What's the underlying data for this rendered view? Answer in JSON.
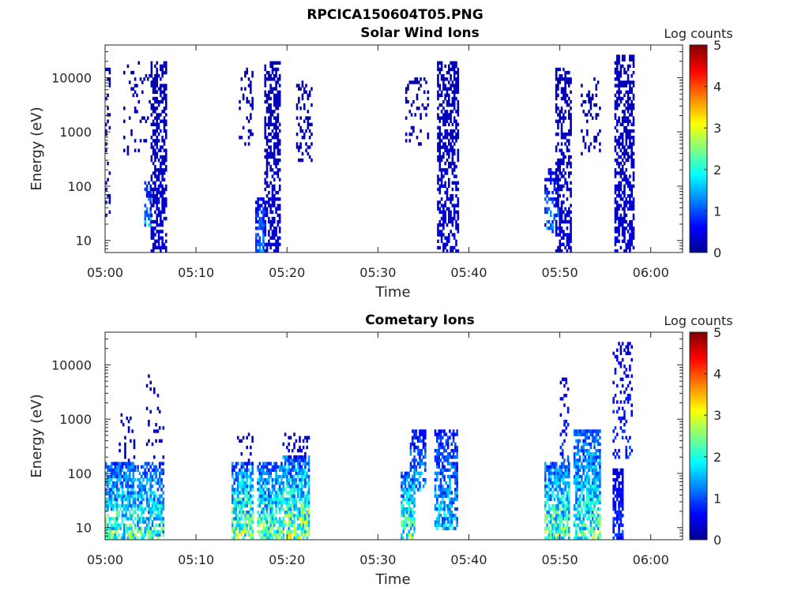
{
  "figure_title": "RPCICA150604T05.PNG",
  "colorscale": [
    "#00008f",
    "#0000ff",
    "#0080ff",
    "#00ffff",
    "#80ff80",
    "#ffff00",
    "#ff8000",
    "#ff0000",
    "#800000"
  ],
  "chart_data": [
    {
      "type": "heatmap",
      "title": "Solar Wind Ions",
      "xlabel": "Time",
      "ylabel": "Energy (eV)",
      "xlim": [
        0,
        63.5
      ],
      "ylim": [
        6,
        40000
      ],
      "xticks": [
        0,
        10,
        20,
        30,
        40,
        50,
        60
      ],
      "xtick_labels": [
        "05:00",
        "05:10",
        "05:20",
        "05:30",
        "05:40",
        "05:50",
        "06:00"
      ],
      "yticks": [
        10,
        100,
        1000,
        10000
      ],
      "ytick_labels": [
        "10",
        "100",
        "1000",
        "10000"
      ],
      "colorbar": {
        "label": "Log counts",
        "range": [
          0,
          5
        ],
        "ticks": [
          0,
          1,
          2,
          3,
          4,
          5
        ],
        "tick_labels": [
          "0",
          "1",
          "2",
          "3",
          "4",
          "5"
        ]
      },
      "bursts": [
        {
          "t0": 0.0,
          "t1": 0.5,
          "emin": 30,
          "emax": 15000,
          "peak": 0.4,
          "density": 0.3
        },
        {
          "t0": 2.0,
          "t1": 5.0,
          "emin": 400,
          "emax": 20000,
          "peak": 0.3,
          "density": 0.12
        },
        {
          "t0": 4.3,
          "t1": 5.0,
          "emin": 20,
          "emax": 120,
          "peak": 1.7,
          "density": 0.6
        },
        {
          "t0": 5.0,
          "t1": 6.7,
          "emin": 6,
          "emax": 20000,
          "peak": 0.5,
          "density": 0.55
        },
        {
          "t0": 14.7,
          "t1": 16.3,
          "emin": 600,
          "emax": 15000,
          "peak": 0.3,
          "density": 0.2
        },
        {
          "t0": 16.5,
          "t1": 17.6,
          "emin": 6,
          "emax": 60,
          "peak": 1.6,
          "density": 0.7
        },
        {
          "t0": 17.5,
          "t1": 19.3,
          "emin": 6,
          "emax": 18000,
          "peak": 0.5,
          "density": 0.55
        },
        {
          "t0": 21.0,
          "t1": 22.7,
          "emin": 300,
          "emax": 8000,
          "peak": 0.3,
          "density": 0.25
        },
        {
          "t0": 33.0,
          "t1": 35.5,
          "emin": 600,
          "emax": 10000,
          "peak": 0.3,
          "density": 0.18
        },
        {
          "t0": 36.5,
          "t1": 38.8,
          "emin": 6,
          "emax": 20000,
          "peak": 0.5,
          "density": 0.55
        },
        {
          "t0": 48.3,
          "t1": 49.8,
          "emin": 15,
          "emax": 200,
          "peak": 1.5,
          "density": 0.5
        },
        {
          "t0": 49.5,
          "t1": 51.3,
          "emin": 6,
          "emax": 15000,
          "peak": 0.5,
          "density": 0.5
        },
        {
          "t0": 52.3,
          "t1": 54.5,
          "emin": 400,
          "emax": 10000,
          "peak": 0.3,
          "density": 0.2
        },
        {
          "t0": 56.0,
          "t1": 58.2,
          "emin": 6,
          "emax": 25000,
          "peak": 0.5,
          "density": 0.55
        }
      ]
    },
    {
      "type": "heatmap",
      "title": "Cometary Ions",
      "xlabel": "Time",
      "ylabel": "Energy (eV)",
      "xlim": [
        0,
        63.5
      ],
      "ylim": [
        6,
        40000
      ],
      "xticks": [
        0,
        10,
        20,
        30,
        40,
        50,
        60
      ],
      "xtick_labels": [
        "05:00",
        "05:10",
        "05:20",
        "05:30",
        "05:40",
        "05:50",
        "06:00"
      ],
      "yticks": [
        10,
        100,
        1000,
        10000
      ],
      "ytick_labels": [
        "10",
        "100",
        "1000",
        "10000"
      ],
      "colorbar": {
        "label": "Log counts",
        "range": [
          0,
          5
        ],
        "ticks": [
          0,
          1,
          2,
          3,
          4,
          5
        ],
        "tick_labels": [
          "0",
          "1",
          "2",
          "3",
          "4",
          "5"
        ]
      },
      "bursts": [
        {
          "t0": 0.0,
          "t1": 3.3,
          "emin": 6,
          "emax": 150,
          "peak": 2.8,
          "density": 0.75
        },
        {
          "t0": 1.5,
          "t1": 3.3,
          "emin": 150,
          "emax": 1500,
          "peak": 0.4,
          "density": 0.15
        },
        {
          "t0": 3.5,
          "t1": 6.5,
          "emin": 6,
          "emax": 150,
          "peak": 2.6,
          "density": 0.7
        },
        {
          "t0": 4.5,
          "t1": 6.5,
          "emin": 200,
          "emax": 6000,
          "peak": 0.4,
          "density": 0.12
        },
        {
          "t0": 13.9,
          "t1": 16.2,
          "emin": 6,
          "emax": 150,
          "peak": 3.1,
          "density": 0.75
        },
        {
          "t0": 14.5,
          "t1": 16.2,
          "emin": 150,
          "emax": 500,
          "peak": 0.5,
          "density": 0.2
        },
        {
          "t0": 16.7,
          "t1": 19.5,
          "emin": 6,
          "emax": 150,
          "peak": 2.9,
          "density": 0.75
        },
        {
          "t0": 19.5,
          "t1": 22.5,
          "emin": 6,
          "emax": 200,
          "peak": 3.2,
          "density": 0.8
        },
        {
          "t0": 19.5,
          "t1": 22.5,
          "emin": 200,
          "emax": 500,
          "peak": 0.6,
          "density": 0.25
        },
        {
          "t0": 32.5,
          "t1": 34.0,
          "emin": 6,
          "emax": 100,
          "peak": 2.9,
          "density": 0.7
        },
        {
          "t0": 33.5,
          "t1": 35.3,
          "emin": 50,
          "emax": 600,
          "peak": 1.9,
          "density": 0.6
        },
        {
          "t0": 36.2,
          "t1": 38.8,
          "emin": 10,
          "emax": 600,
          "peak": 2.0,
          "density": 0.65
        },
        {
          "t0": 48.3,
          "t1": 51.0,
          "emin": 6,
          "emax": 150,
          "peak": 3.0,
          "density": 0.75
        },
        {
          "t0": 50.0,
          "t1": 51.0,
          "emin": 150,
          "emax": 8000,
          "peak": 1.2,
          "density": 0.2
        },
        {
          "t0": 51.5,
          "t1": 54.5,
          "emin": 6,
          "emax": 600,
          "peak": 2.7,
          "density": 0.7
        },
        {
          "t0": 55.8,
          "t1": 57.0,
          "emin": 6,
          "emax": 120,
          "peak": 1.1,
          "density": 0.7
        },
        {
          "t0": 55.8,
          "t1": 58.0,
          "emin": 200,
          "emax": 25000,
          "peak": 1.0,
          "density": 0.25
        }
      ]
    }
  ]
}
